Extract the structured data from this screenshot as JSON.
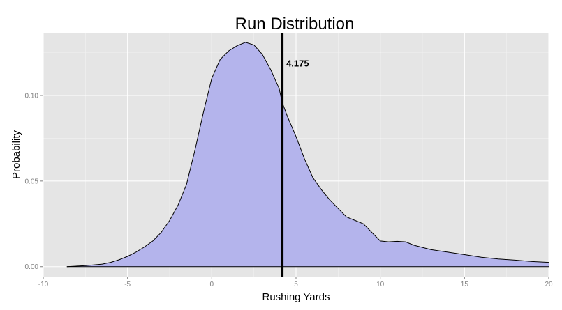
{
  "chart_data": {
    "type": "area",
    "title": "Run Distribution",
    "xlabel": "Rushing Yards",
    "ylabel": "Probability",
    "xlim": [
      -10,
      20
    ],
    "ylim": [
      -0.0058,
      0.1366
    ],
    "x_ticks": [
      -10,
      -5,
      0,
      5,
      10,
      15,
      20
    ],
    "x_tick_labels": [
      "-10",
      "-5",
      "0",
      "5",
      "10",
      "15",
      "20"
    ],
    "y_ticks": [
      0.0,
      0.05,
      0.1
    ],
    "y_tick_labels": [
      "0.00",
      "0.05",
      "0.10"
    ],
    "grid": true,
    "colors": {
      "panel": "#e5e5e5",
      "grid_major": "#ffffff",
      "grid_minor": "#f2f2f2",
      "fill": "#b4b4ec",
      "outline": "#000000",
      "vline": "#000000"
    },
    "series": [
      {
        "x": [
          -8.6,
          -7.5,
          -6.5,
          -6,
          -5.5,
          -5,
          -4.5,
          -4,
          -3.5,
          -3,
          -2.5,
          -2,
          -1.5,
          -1,
          -0.5,
          0,
          0.5,
          1,
          1.5,
          2,
          2.5,
          3,
          3.5,
          4,
          4.175,
          4.5,
          5,
          5.5,
          6,
          6.5,
          7,
          7.5,
          8,
          8.5,
          9,
          9.5,
          10,
          10.5,
          11,
          11.5,
          12,
          13,
          14,
          15,
          16,
          17,
          18,
          19,
          20
        ],
        "y": [
          0.0,
          0.0006,
          0.0015,
          0.0025,
          0.004,
          0.006,
          0.0085,
          0.0115,
          0.015,
          0.02,
          0.027,
          0.036,
          0.048,
          0.068,
          0.09,
          0.11,
          0.121,
          0.126,
          0.129,
          0.131,
          0.1295,
          0.124,
          0.115,
          0.104,
          0.096,
          0.0875,
          0.076,
          0.063,
          0.052,
          0.045,
          0.039,
          0.034,
          0.029,
          0.027,
          0.025,
          0.02,
          0.015,
          0.0145,
          0.0148,
          0.0145,
          0.0125,
          0.01,
          0.0085,
          0.007,
          0.0055,
          0.0045,
          0.0038,
          0.003,
          0.0025
        ]
      }
    ],
    "vline": {
      "x": 4.175,
      "label": "4.175"
    }
  }
}
